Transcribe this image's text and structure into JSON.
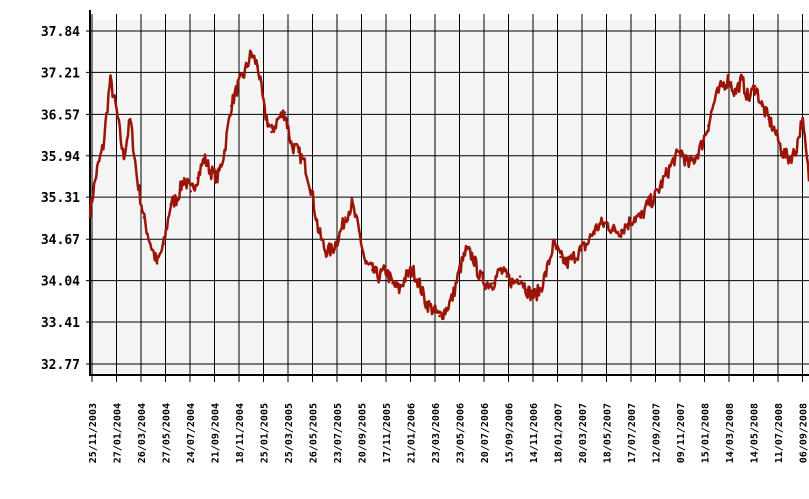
{
  "chart_data": {
    "type": "line",
    "title": "",
    "xlabel": "",
    "ylabel": "",
    "ylim": [
      32.77,
      37.84
    ],
    "grid": true,
    "legend": "none",
    "colors": {
      "line": "#9a1408",
      "plot_background": "#f4f4f4",
      "grid": "#000000",
      "text": "#000000"
    },
    "y_ticks": [
      "37.84",
      "37.21",
      "36.57",
      "35.94",
      "35.31",
      "34.67",
      "34.04",
      "33.41",
      "32.77"
    ],
    "x_tick_labels": [
      "25/11/2003",
      "27/01/2004",
      "26/03/2004",
      "27/05/2004",
      "24/07/2004",
      "21/09/2004",
      "18/11/2004",
      "25/01/2005",
      "25/03/2005",
      "26/05/2005",
      "23/07/2005",
      "20/09/2005",
      "17/11/2005",
      "21/01/2006",
      "23/03/2006",
      "23/05/2006",
      "20/07/2006",
      "15/09/2006",
      "14/11/2006",
      "18/01/2007",
      "20/03/2007",
      "18/05/2007",
      "17/07/2007",
      "12/09/2007",
      "09/11/2007",
      "15/01/2008",
      "14/03/2008",
      "14/05/2008",
      "11/07/2008",
      "06/09/2008"
    ],
    "series": [
      {
        "values": [
          35.1,
          35.7,
          36.1,
          37.1,
          36.6,
          35.9,
          36.5,
          35.6,
          35.0,
          34.6,
          34.3,
          34.6,
          35.2,
          35.3,
          35.6,
          35.4,
          35.6,
          35.9,
          35.7,
          35.6,
          36.0,
          36.7,
          37.0,
          37.2,
          37.5,
          37.3,
          36.6,
          36.3,
          36.5,
          36.6,
          36.1,
          36.0,
          35.8,
          35.4,
          34.8,
          34.5,
          34.5,
          34.7,
          35.0,
          35.2,
          34.8,
          34.3,
          34.2,
          34.1,
          34.2,
          34.0,
          33.9,
          34.1,
          34.2,
          34.0,
          33.7,
          33.6,
          33.5,
          33.6,
          33.8,
          34.2,
          34.5,
          34.4,
          34.1,
          34.0,
          34.0,
          34.2,
          34.1,
          34.0,
          34.1,
          33.9,
          33.8,
          33.9,
          34.2,
          34.6,
          34.4,
          34.3,
          34.4,
          34.5,
          34.6,
          34.8,
          34.9,
          34.9,
          34.8,
          34.8,
          34.9,
          35.0,
          35.0,
          35.2,
          35.3,
          35.5,
          35.7,
          35.9,
          36.0,
          35.8,
          35.9,
          36.1,
          36.4,
          36.8,
          37.0,
          37.1,
          36.9,
          37.1,
          36.8,
          37.0,
          36.7,
          36.5,
          36.3,
          36.0,
          35.9,
          36.0,
          36.5,
          35.6
        ]
      }
    ]
  }
}
